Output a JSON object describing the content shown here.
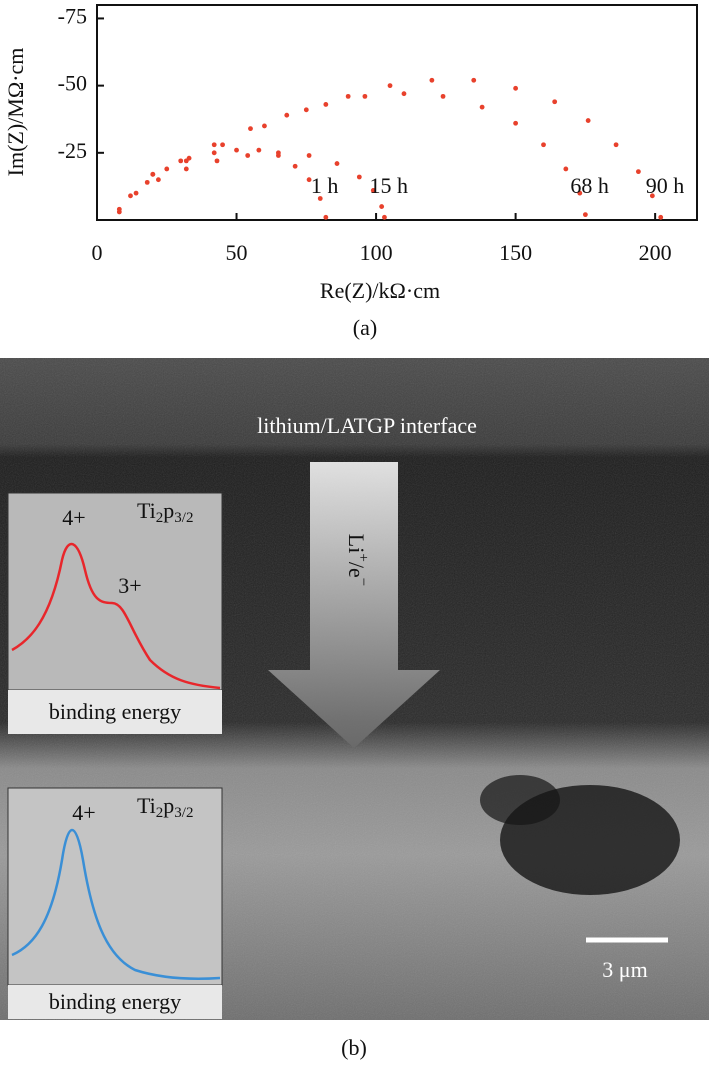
{
  "chart_data": {
    "type": "scatter",
    "xlabel": "Re(Z)/kΩ·cm",
    "ylabel": "Im(Z)/MΩ·cm",
    "xlim": [
      0,
      215
    ],
    "xticks": [
      0,
      50,
      100,
      150,
      200
    ],
    "ylim": [
      0,
      -80
    ],
    "yticks": [
      -75,
      -50,
      -25
    ],
    "series": [
      {
        "name": "1 h",
        "color": "#e8412c",
        "x": [
          8,
          12,
          18,
          25,
          33,
          42,
          50,
          58,
          65,
          71,
          76,
          80,
          82
        ],
        "values": [
          -3,
          -9,
          -14,
          -19,
          -23,
          -25,
          -26,
          -26,
          -24,
          -20,
          -15,
          -8,
          -1
        ]
      },
      {
        "name": "15 h",
        "color": "#e8412c",
        "x": [
          8,
          14,
          22,
          32,
          43,
          54,
          65,
          76,
          86,
          94,
          99,
          102,
          103
        ],
        "values": [
          -4,
          -10,
          -15,
          -19,
          -22,
          -24,
          -25,
          -24,
          -21,
          -16,
          -11,
          -5,
          -1
        ]
      },
      {
        "name": "68 h",
        "color": "#e8412c",
        "x": [
          20,
          30,
          42,
          55,
          68,
          82,
          96,
          110,
          124,
          138,
          150,
          160,
          168,
          173,
          175
        ],
        "values": [
          -17,
          -22,
          -28,
          -34,
          -39,
          -43,
          -46,
          -47,
          -46,
          -42,
          -36,
          -28,
          -19,
          -10,
          -2
        ]
      },
      {
        "name": "90 h",
        "color": "#e8412c",
        "x": [
          20,
          32,
          45,
          60,
          75,
          90,
          105,
          120,
          135,
          150,
          164,
          176,
          186,
          194,
          199,
          202
        ],
        "values": [
          -17,
          -22,
          -28,
          -35,
          -41,
          -46,
          -50,
          -52,
          -52,
          -49,
          -44,
          -37,
          -28,
          -18,
          -9,
          -1
        ]
      }
    ]
  },
  "captions": {
    "a": "(a)",
    "b": "(b)"
  },
  "image": {
    "interface_label": "lithium/LATGP interface",
    "arrow_label": [
      "Li",
      "+",
      "/e",
      "−"
    ],
    "insets": [
      {
        "peaks": [
          "4+",
          "3+"
        ],
        "spectrum_label": [
          "Ti",
          "2",
          "p",
          "3/2"
        ],
        "xlabel": "binding energy"
      },
      {
        "peaks": [
          "4+"
        ],
        "spectrum_label": [
          "Ti",
          "2",
          "p",
          "3/2"
        ],
        "xlabel": "binding energy"
      }
    ],
    "scale_bar": "3 μm"
  }
}
